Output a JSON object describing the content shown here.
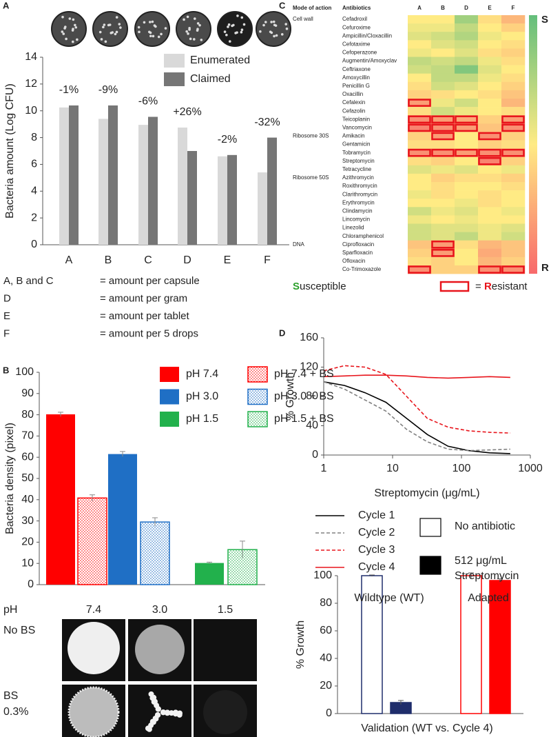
{
  "panel_labels": [
    "A",
    "B",
    "C",
    "D"
  ],
  "plate_grid": {
    "row_header": "pH",
    "columns": [
      "7.4",
      "3.0",
      "1.5"
    ],
    "rows": [
      {
        "lines": [
          "No BS"
        ]
      },
      {
        "lines": [
          "BS",
          "0.3%"
        ]
      }
    ]
  },
  "chart_data": [
    {
      "type": "bar",
      "ylabel": "Bacteria amount (Log CFU)",
      "categories": [
        "A",
        "B",
        "C",
        "D",
        "E",
        "F"
      ],
      "series": [
        {
          "name": "Enumerated",
          "color": "#d9d9d9",
          "values": [
            10.25,
            9.4,
            8.95,
            8.75,
            6.6,
            5.4
          ]
        },
        {
          "name": "Claimed",
          "color": "#767676",
          "values": [
            10.4,
            10.4,
            9.55,
            7.0,
            6.7,
            8.0
          ]
        }
      ],
      "annotations": [
        {
          "text": "-1%",
          "color": "#e8141b"
        },
        {
          "text": "-9%",
          "color": "#e8141b"
        },
        {
          "text": "-6%",
          "color": "#e8141b"
        },
        {
          "text": "+26%",
          "color": "#2ca02c"
        },
        {
          "text": "-2%",
          "color": "#e8141b"
        },
        {
          "text": "-32%",
          "color": "#e8141b"
        }
      ],
      "ylim": [
        0,
        14
      ],
      "yticks": [
        0,
        2,
        4,
        6,
        8,
        10,
        12,
        14
      ],
      "notes": [
        [
          "A, B and C",
          "= amount per capsule"
        ],
        [
          "D",
          "= amount per gram"
        ],
        [
          "E",
          "= amount per tablet"
        ],
        [
          "F",
          "= amount per 5 drops"
        ]
      ]
    },
    {
      "type": "bar",
      "ylabel": "Bacteria density (pixel)",
      "series": [
        {
          "name": "pH 7.4",
          "color": "#ff0000",
          "hatch": false,
          "values": [
            80.2
          ],
          "errors": [
            1.0
          ]
        },
        {
          "name": "pH 7.4 + BS",
          "color": "#ff0000",
          "hatch": true,
          "values": [
            40.8
          ],
          "errors": [
            1.5
          ]
        },
        {
          "name": "pH 3.0",
          "color": "#1f6fc5",
          "hatch": false,
          "values": [
            61.5
          ],
          "errors": [
            1.2
          ]
        },
        {
          "name": "pH 3.0 + BS",
          "color": "#1f6fc5",
          "hatch": true,
          "values": [
            29.5
          ],
          "errors": [
            2.0
          ]
        },
        {
          "name": "pH 1.5",
          "color": "#22b14c",
          "hatch": false,
          "values": [
            10.2
          ],
          "errors": [
            0.4
          ]
        },
        {
          "name": "pH 1.5 + BS",
          "color": "#22b14c",
          "hatch": true,
          "values": [
            16.5
          ],
          "errors": [
            4.0
          ]
        }
      ],
      "ylim": [
        0,
        100
      ],
      "yticks": [
        0,
        10,
        20,
        30,
        40,
        50,
        60,
        70,
        80,
        90,
        100
      ]
    },
    {
      "type": "heatmap",
      "header": [
        "Mode of action",
        "Antibiotics"
      ],
      "columns": [
        "A",
        "B",
        "D",
        "E",
        "F"
      ],
      "rows": [
        "Cefadroxil",
        "Cefuroxime",
        "Ampicillin/Cloxacillin",
        "Cefotaxime",
        "Cefoperazone",
        "Augmentin/Amoxyclav",
        "Ceftriaxone",
        "Amoxycillin",
        "Penicillin G",
        "Oxacillin",
        "Cefalexin",
        "Cefazolin",
        "Teicoplanin",
        "Vancomycin",
        "Amikacin",
        "Gentamicin",
        "Tobramycin",
        "Streptomycin",
        "Tetracycline",
        "Azithromycin",
        "Roxithromycin",
        "Clarithromycin",
        "Erythromycin",
        "Clindamycin",
        "Lincomycin",
        "Linezolid",
        "Chloramphenicol",
        "Ciprofloxacin",
        "Sparfloxacin",
        "Ofloxacin",
        "Co-Trimoxazole"
      ],
      "groups": [
        {
          "label": "Cell wall",
          "row": 0
        },
        {
          "label": "Ribosome 30S",
          "row": 14
        },
        {
          "label": "Ribosome 50S",
          "row": 19
        },
        {
          "label": "DNA",
          "row": 27
        }
      ],
      "z": [
        [
          0.5,
          0.5,
          0.2,
          0.55,
          0.7
        ],
        [
          0.45,
          0.45,
          0.3,
          0.5,
          0.6
        ],
        [
          0.4,
          0.35,
          0.25,
          0.45,
          0.5
        ],
        [
          0.5,
          0.4,
          0.35,
          0.5,
          0.55
        ],
        [
          0.45,
          0.5,
          0.4,
          0.55,
          0.6
        ],
        [
          0.3,
          0.35,
          0.3,
          0.45,
          0.55
        ],
        [
          0.35,
          0.3,
          0.1,
          0.4,
          0.5
        ],
        [
          0.5,
          0.3,
          0.3,
          0.45,
          0.55
        ],
        [
          0.55,
          0.35,
          0.4,
          0.5,
          0.6
        ],
        [
          0.6,
          0.55,
          0.5,
          0.55,
          0.65
        ],
        [
          0.8,
          0.45,
          0.35,
          0.5,
          0.7
        ],
        [
          0.55,
          0.35,
          0.45,
          0.5,
          0.55
        ],
        [
          0.85,
          0.8,
          0.75,
          0.6,
          0.8
        ],
        [
          0.9,
          0.85,
          0.8,
          0.65,
          0.85
        ],
        [
          0.6,
          0.8,
          0.5,
          0.85,
          0.6
        ],
        [
          0.55,
          0.55,
          0.5,
          0.6,
          0.55
        ],
        [
          0.85,
          0.85,
          0.8,
          0.85,
          0.85
        ],
        [
          0.55,
          0.6,
          0.5,
          0.9,
          0.6
        ],
        [
          0.4,
          0.45,
          0.4,
          0.5,
          0.45
        ],
        [
          0.5,
          0.6,
          0.55,
          0.55,
          0.6
        ],
        [
          0.5,
          0.55,
          0.5,
          0.5,
          0.55
        ],
        [
          0.45,
          0.55,
          0.5,
          0.55,
          0.5
        ],
        [
          0.5,
          0.5,
          0.45,
          0.55,
          0.5
        ],
        [
          0.35,
          0.45,
          0.4,
          0.5,
          0.45
        ],
        [
          0.45,
          0.5,
          0.45,
          0.5,
          0.5
        ],
        [
          0.35,
          0.4,
          0.4,
          0.45,
          0.4
        ],
        [
          0.35,
          0.4,
          0.3,
          0.45,
          0.35
        ],
        [
          0.65,
          0.8,
          0.55,
          0.7,
          0.65
        ],
        [
          0.6,
          0.8,
          0.5,
          0.75,
          0.65
        ],
        [
          0.55,
          0.6,
          0.5,
          0.7,
          0.6
        ],
        [
          0.85,
          0.6,
          0.6,
          0.85,
          0.85
        ]
      ],
      "colorscale": [
        "#63be7b",
        "#ffeb84",
        "#f8696b"
      ],
      "colorbar_labels": [
        {
          "text": "S",
          "color": "#2ca02c"
        },
        {
          "text": "R",
          "color": "#e8141b"
        }
      ],
      "resistant": [
        [
          10,
          0
        ],
        [
          12,
          0
        ],
        [
          12,
          1
        ],
        [
          12,
          2
        ],
        [
          12,
          4
        ],
        [
          13,
          0
        ],
        [
          13,
          1
        ],
        [
          13,
          2
        ],
        [
          13,
          4
        ],
        [
          14,
          1
        ],
        [
          14,
          3
        ],
        [
          16,
          0
        ],
        [
          16,
          1
        ],
        [
          16,
          2
        ],
        [
          16,
          3
        ],
        [
          16,
          4
        ],
        [
          17,
          3
        ],
        [
          27,
          1
        ],
        [
          28,
          1
        ],
        [
          30,
          0
        ],
        [
          30,
          3
        ],
        [
          30,
          4
        ]
      ],
      "resistant_color": "#e8141b",
      "legend": [
        "Susceptible",
        "= Resistant"
      ]
    },
    {
      "type": "line",
      "xlabel": "Streptomycin (μg/mL)",
      "ylabel": "% Growth",
      "xlog": true,
      "x": [
        1,
        2,
        4,
        8,
        16,
        32,
        64,
        128,
        256,
        512
      ],
      "series": [
        {
          "name": "Cycle 1",
          "color": "#000000",
          "dash": false,
          "values": [
            100,
            95,
            85,
            72,
            50,
            28,
            12,
            6,
            3,
            2
          ]
        },
        {
          "name": "Cycle 2",
          "color": "#808080",
          "dash": true,
          "values": [
            100,
            90,
            75,
            60,
            35,
            18,
            8,
            6,
            7,
            8
          ]
        },
        {
          "name": "Cycle 3",
          "color": "#e8141b",
          "dash": true,
          "values": [
            115,
            122,
            120,
            110,
            80,
            50,
            38,
            33,
            31,
            30
          ]
        },
        {
          "name": "Cycle 4",
          "color": "#e8141b",
          "dash": false,
          "values": [
            107,
            108,
            109,
            109,
            108,
            106,
            105,
            106,
            107,
            106
          ]
        }
      ],
      "xlim": [
        1,
        1000
      ],
      "xticks": [
        1,
        10,
        100,
        1000
      ],
      "ylim": [
        0,
        160
      ],
      "yticks": [
        0,
        40,
        80,
        120,
        160
      ]
    },
    {
      "type": "bar",
      "ylabel": "% Growth",
      "xlabel": "Validation (WT vs. Cycle 4)",
      "categories": [
        "Wildtype (WT)",
        "Adapted"
      ],
      "category_colors": [
        "#1f2d6b",
        "#ff0000"
      ],
      "series": [
        {
          "name": "No antibiotic",
          "color": "#ffffff",
          "filled": false,
          "values": [
            100,
            100
          ],
          "errors": [
            0.5,
            2.0
          ]
        },
        {
          "name": "512 μg/mL Streptomycin",
          "color": "#000000",
          "filled": true,
          "values": [
            8,
            96.5
          ],
          "errors": [
            1.5,
            1.2
          ]
        }
      ],
      "ylim": [
        0,
        100
      ],
      "yticks": [
        0,
        20,
        40,
        60,
        80,
        100
      ]
    }
  ]
}
